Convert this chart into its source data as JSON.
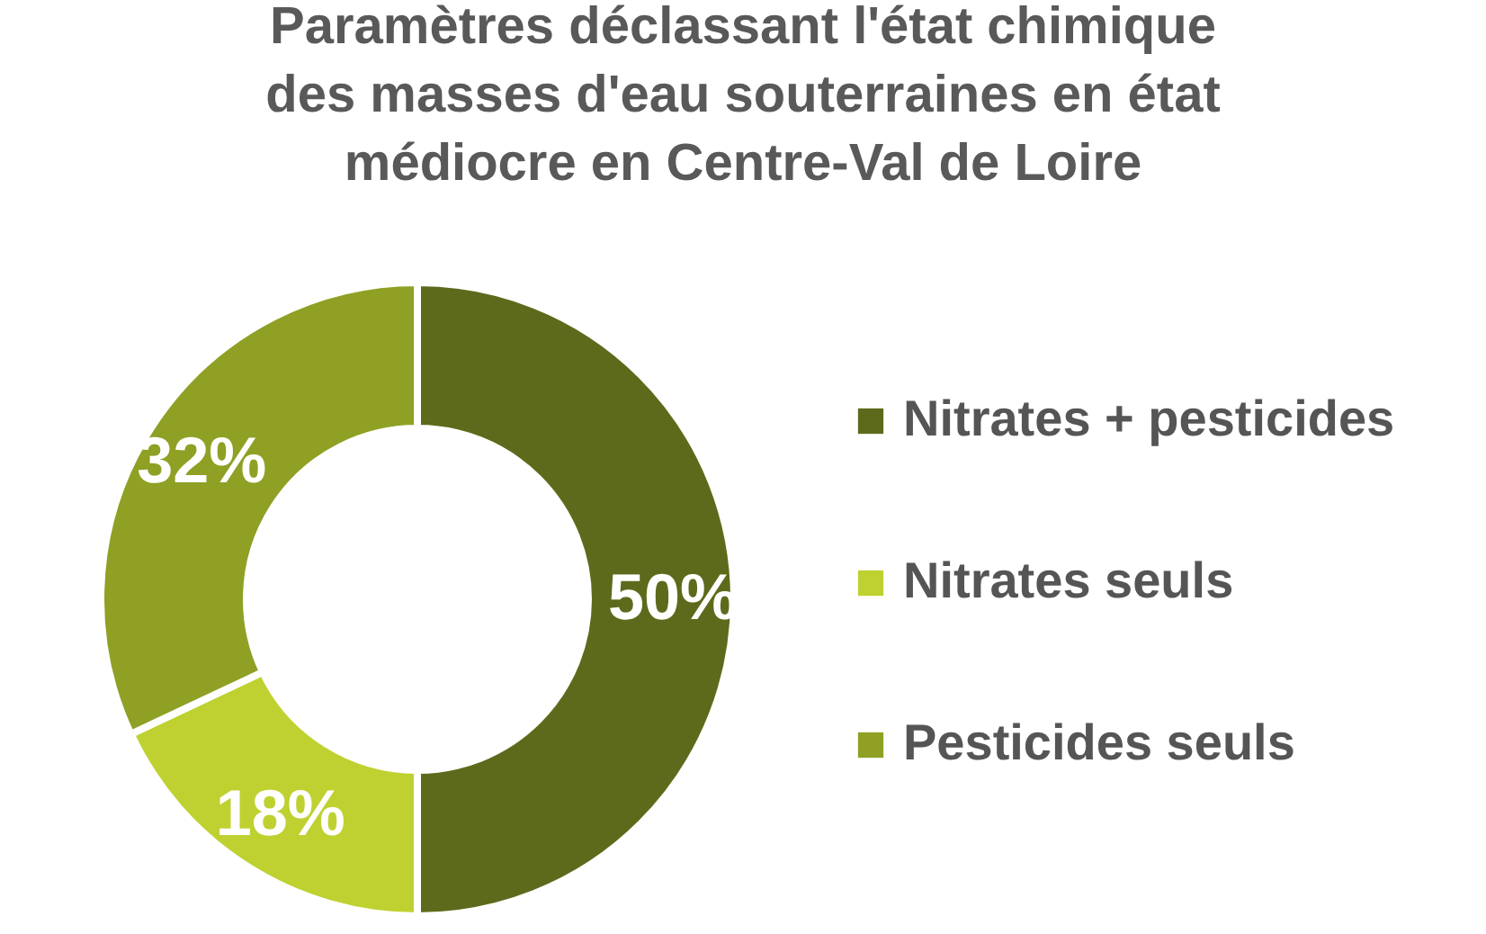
{
  "chart_data": {
    "type": "donut",
    "title": "Paramètres déclassant l'état chimique des masses d'eau souterraines en état médiocre en Centre-Val de Loire",
    "categories": [
      "Nitrates + pesticides",
      "Nitrates seuls",
      "Pesticides seuls"
    ],
    "values": [
      50,
      18,
      32
    ],
    "colors": [
      "#5e6a1b",
      "#bfd130",
      "#8fa024"
    ],
    "value_labels": [
      "50%",
      "18%",
      "32%"
    ],
    "legend": "right"
  }
}
